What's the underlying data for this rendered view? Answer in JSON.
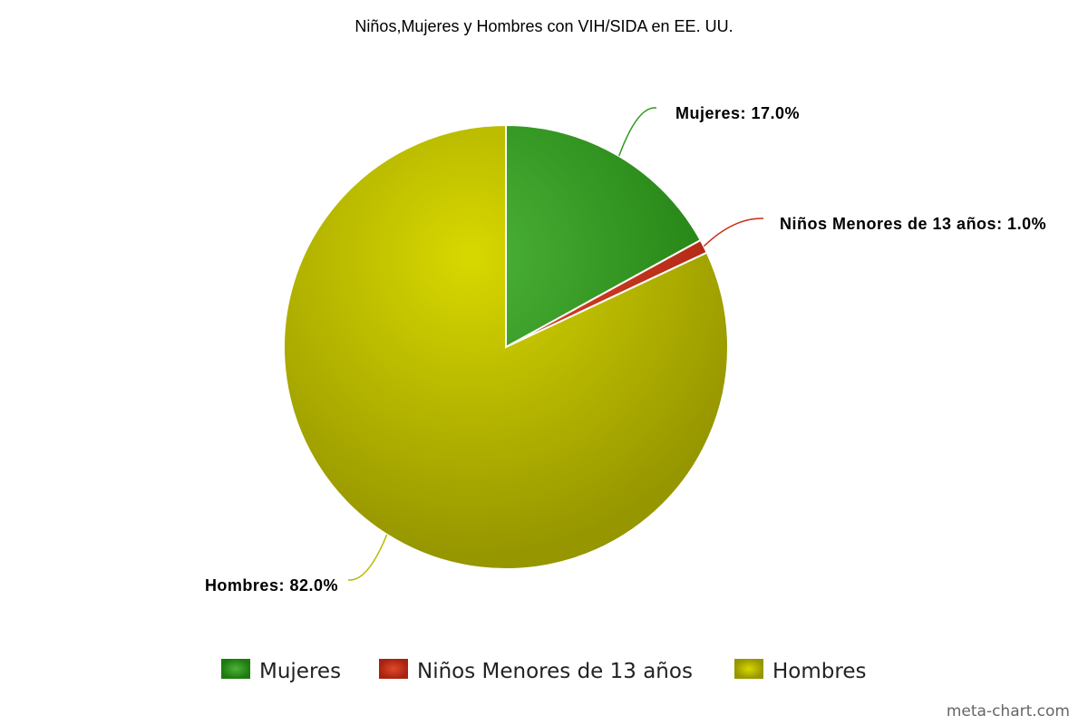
{
  "chart_data": {
    "type": "pie",
    "title": "Niños,Mujeres y Hombres con VIH/SIDA en EE. UU.",
    "slices": [
      {
        "name": "Mujeres",
        "value": 17.0,
        "label": "Mujeres: 17.0%",
        "color": "#2e9a1c",
        "color_light": "#4db338",
        "color_dark": "#1c7a0e"
      },
      {
        "name": "Niños Menores de 13 años",
        "value": 1.0,
        "label": "Niños Menores de 13 años: 1.0%",
        "color": "#c8321a",
        "color_light": "#e04a2a",
        "color_dark": "#a82210"
      },
      {
        "name": "Hombres",
        "value": 82.0,
        "label": "Hombres: 82.0%",
        "color": "#b8b800",
        "color_light": "#d8d800",
        "color_dark": "#969600"
      }
    ],
    "legend": [
      "Mujeres",
      "Niños Menores de 13 años",
      "Hombres"
    ],
    "legend_position": "bottom"
  },
  "credit": "meta-chart.com"
}
